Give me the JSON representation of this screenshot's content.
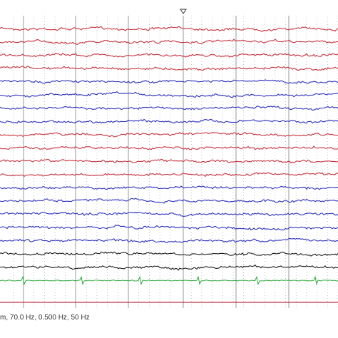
{
  "viewer": {
    "background": "#ffffff",
    "grid_color": "#9aa0a6",
    "second_line_color": "#8a8f94",
    "marker_line_color": "#c8303c",
    "cursor_icon": "triangle-down-icon"
  },
  "status": {
    "filter_text": "m, 70.0 Hz, 0.500 Hz, 50 Hz"
  },
  "channels": [
    {
      "color": "#c8303c"
    },
    {
      "color": "#c8303c"
    },
    {
      "color": "#c8303c"
    },
    {
      "color": "#c8303c"
    },
    {
      "color": "#2b2fbf"
    },
    {
      "color": "#2b2fbf"
    },
    {
      "color": "#2b2fbf"
    },
    {
      "color": "#2b2fbf"
    },
    {
      "color": "#c8303c"
    },
    {
      "color": "#c8303c"
    },
    {
      "color": "#c8303c"
    },
    {
      "color": "#c8303c"
    },
    {
      "color": "#2b2fbf"
    },
    {
      "color": "#2b2fbf"
    },
    {
      "color": "#2b2fbf"
    },
    {
      "color": "#2b2fbf"
    },
    {
      "color": "#2b2fbf"
    },
    {
      "color": "#1a1a1a"
    },
    {
      "color": "#1a1a1a"
    },
    {
      "color": "#2ea83a"
    }
  ]
}
